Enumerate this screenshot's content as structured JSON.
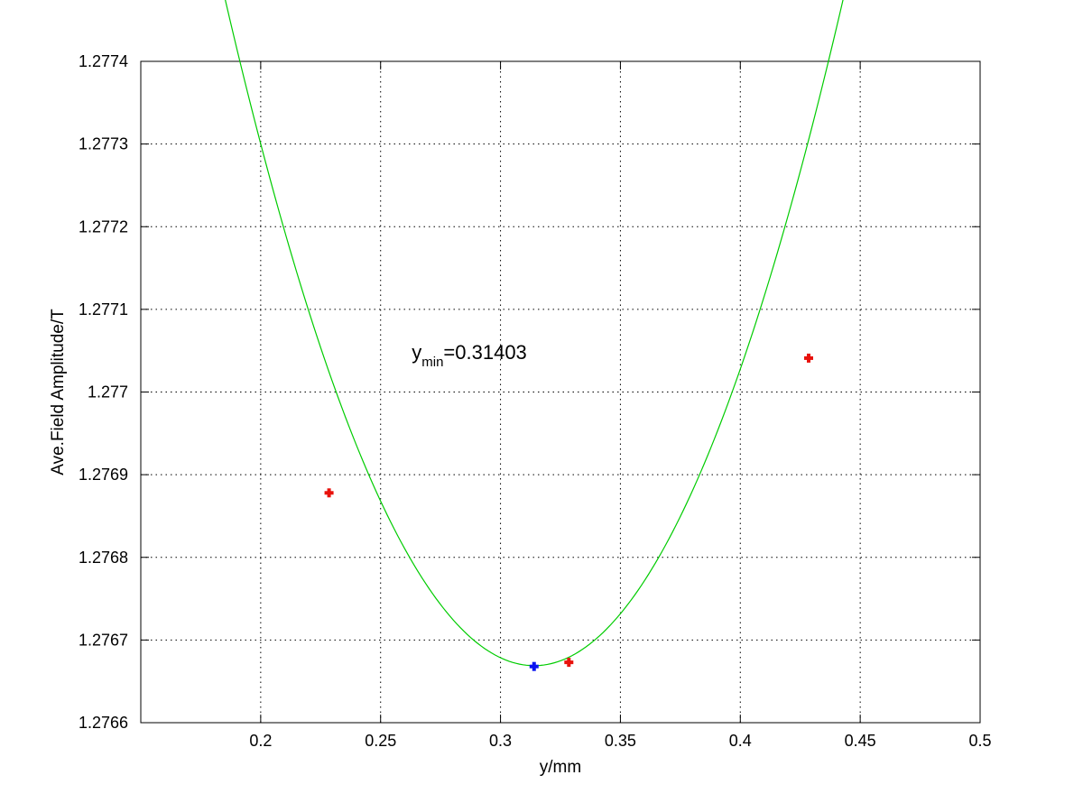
{
  "chart_data": {
    "type": "scatter",
    "xlabel": "y/mm",
    "ylabel": "Ave.Field Amplitude/T",
    "xlim": [
      0.15,
      0.5
    ],
    "ylim": [
      1.2766,
      1.2774
    ],
    "x_ticks": [
      "0.2",
      "0.25",
      "0.3",
      "0.35",
      "0.4",
      "0.45",
      "0.5"
    ],
    "y_ticks": [
      "1.2766",
      "1.2767",
      "1.2768",
      "1.2769",
      "1.277",
      "1.2771",
      "1.2772",
      "1.2773",
      "1.2774"
    ],
    "grid": true,
    "annotation": {
      "base": "y",
      "subscript": "min",
      "text": "=0.31403",
      "x": 0.263,
      "y": 1.27704
    },
    "series": [
      {
        "kind": "fit-curve",
        "color": "#00cc00",
        "x_range": [
          0.183,
          0.4735
        ],
        "vertex_x": 0.31403,
        "vertex_y": 1.276669,
        "curvature": 0.04855
      },
      {
        "kind": "measured-points",
        "color": "#e8120c",
        "points": [
          {
            "x": 0.2285,
            "y": 1.276878
          },
          {
            "x": 0.3285,
            "y": 1.276673
          },
          {
            "x": 0.4285,
            "y": 1.277041
          }
        ]
      },
      {
        "kind": "minimum-point",
        "color": "#0a14f0",
        "points": [
          {
            "x": 0.314,
            "y": 1.276668
          }
        ]
      }
    ]
  }
}
